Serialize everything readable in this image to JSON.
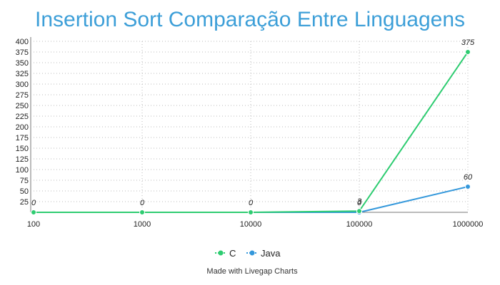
{
  "chart_data": {
    "type": "line",
    "title": "Insertion Sort Comparação Entre Linguagens",
    "xlabel": "",
    "ylabel": "",
    "categories": [
      "100",
      "1000",
      "10000",
      "100000",
      "1000000"
    ],
    "ylim": [
      0,
      400
    ],
    "yticks": [
      25,
      50,
      75,
      100,
      125,
      150,
      175,
      200,
      225,
      250,
      275,
      300,
      325,
      350,
      375,
      400
    ],
    "grid": true,
    "legend_position": "bottom",
    "series": [
      {
        "name": "C",
        "values": [
          0,
          0,
          0,
          3,
          375
        ],
        "color": "#2ecc71"
      },
      {
        "name": "Java",
        "values": [
          0,
          0,
          0,
          0,
          60
        ],
        "color": "#3498db"
      }
    ],
    "data_labels": [
      {
        "series": 0,
        "index": 0,
        "text": "0"
      },
      {
        "series": 0,
        "index": 1,
        "text": "0"
      },
      {
        "series": 0,
        "index": 2,
        "text": "0"
      },
      {
        "series": 0,
        "index": 3,
        "text": "3"
      },
      {
        "series": 1,
        "index": 3,
        "text": "0"
      },
      {
        "series": 0,
        "index": 4,
        "text": "375"
      },
      {
        "series": 1,
        "index": 4,
        "text": "60"
      }
    ]
  },
  "credit": "Made with Livegap Charts"
}
